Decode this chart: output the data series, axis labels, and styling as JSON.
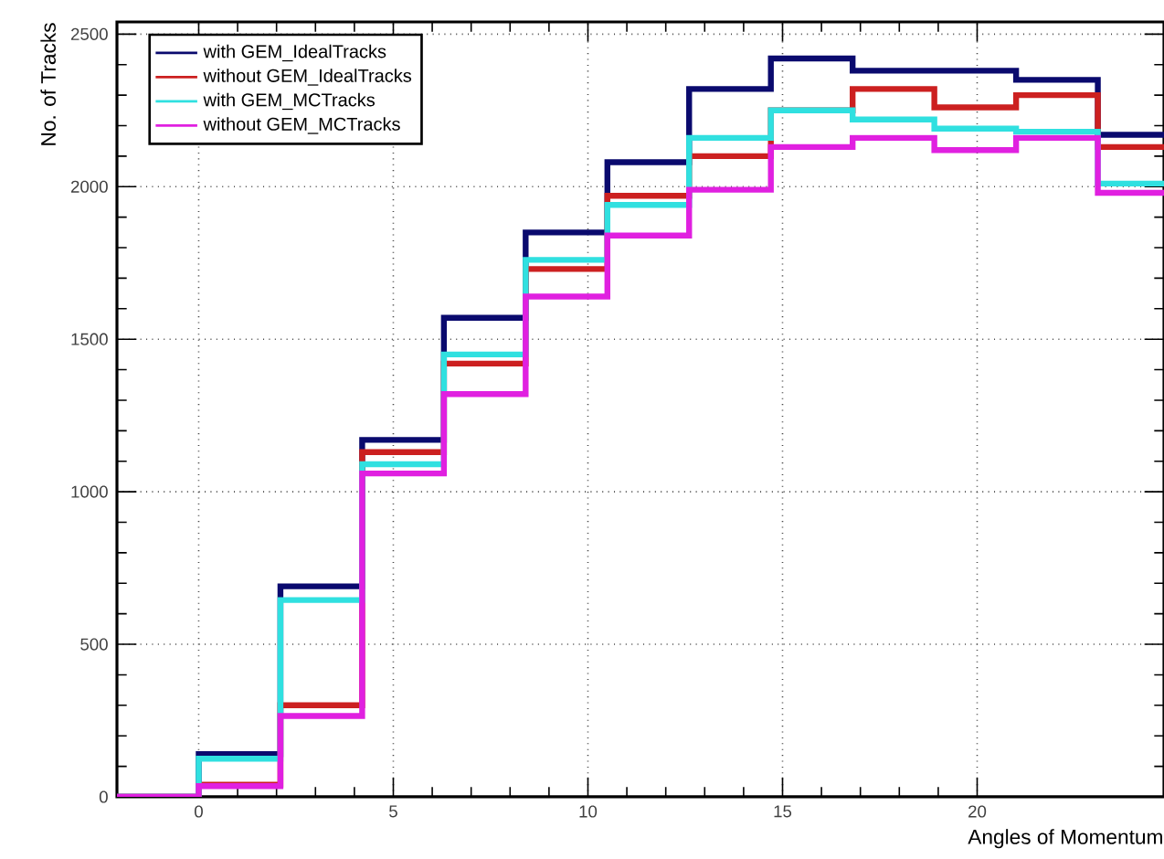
{
  "chart_data": {
    "type": "histogram",
    "xlabel": "Angles of Momentum",
    "ylabel": "No. of Tracks",
    "bins": [
      -2.1,
      0,
      2.1,
      4.2,
      6.3,
      8.4,
      10.5,
      12.6,
      14.7,
      16.8,
      18.9,
      21,
      23.1,
      25.2
    ],
    "series": [
      {
        "name": "with GEM_IdealTracks",
        "color": "#0a0a6e",
        "values": [
          0,
          140,
          690,
          1170,
          1570,
          1850,
          2080,
          2320,
          2420,
          2380,
          2380,
          2350,
          2170
        ]
      },
      {
        "name": "without GEM_IdealTracks",
        "color": "#cc2020",
        "values": [
          0,
          40,
          300,
          1130,
          1420,
          1730,
          1970,
          2100,
          2250,
          2320,
          2260,
          2300,
          2130
        ]
      },
      {
        "name": "with GEM_MCTracks",
        "color": "#30e0e0",
        "values": [
          0,
          125,
          645,
          1090,
          1450,
          1760,
          1940,
          2160,
          2250,
          2220,
          2190,
          2180,
          2010
        ]
      },
      {
        "name": "without GEM_MCTracks",
        "color": "#e020e0",
        "values": [
          0,
          35,
          265,
          1060,
          1320,
          1640,
          1840,
          1990,
          2130,
          2160,
          2120,
          2160,
          1980
        ]
      }
    ],
    "xlim": [
      -2.1,
      24.8
    ],
    "ylim": [
      0,
      2540
    ],
    "xticks": [
      0,
      5,
      10,
      15,
      20
    ],
    "yticks": [
      0,
      500,
      1000,
      1500,
      2000,
      2500
    ],
    "grid": true,
    "legend": "top left"
  }
}
